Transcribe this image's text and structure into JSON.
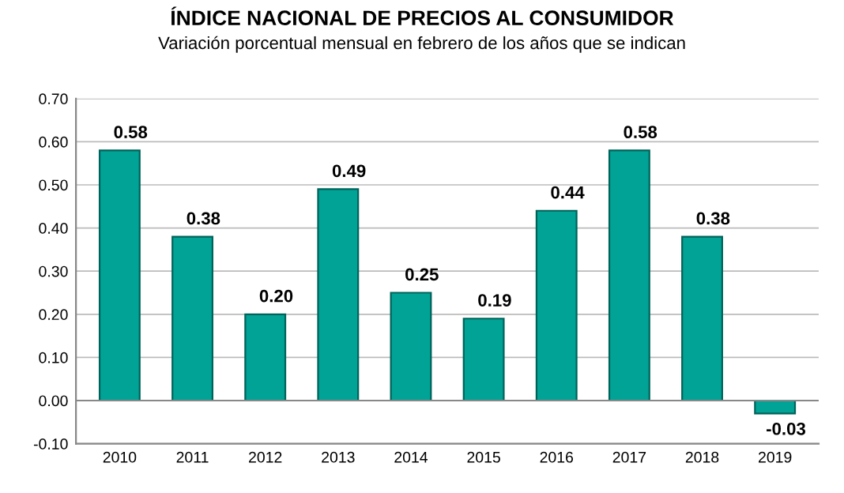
{
  "chart_data": {
    "type": "bar",
    "title": "ÍNDICE NACIONAL DE PRECIOS AL CONSUMIDOR",
    "subtitle": "Variación porcentual mensual en febrero de los años que se indican",
    "categories": [
      "2010",
      "2011",
      "2012",
      "2013",
      "2014",
      "2015",
      "2016",
      "2017",
      "2018",
      "2019"
    ],
    "values": [
      0.58,
      0.38,
      0.2,
      0.49,
      0.25,
      0.19,
      0.44,
      0.58,
      0.38,
      -0.03
    ],
    "value_labels": [
      "0.58",
      "0.38",
      "0.20",
      "0.49",
      "0.25",
      "0.19",
      "0.44",
      "0.58",
      "0.38",
      "-0.03"
    ],
    "color": "#00a396",
    "ylim": [
      -0.1,
      0.7
    ],
    "yticks": [
      {
        "value": -0.1,
        "label": "-0.10"
      },
      {
        "value": 0.0,
        "label": "0.00"
      },
      {
        "value": 0.1,
        "label": "0.10"
      },
      {
        "value": 0.2,
        "label": "0.20"
      },
      {
        "value": 0.3,
        "label": "0.30"
      },
      {
        "value": 0.4,
        "label": "0.40"
      },
      {
        "value": 0.5,
        "label": "0.50"
      },
      {
        "value": 0.6,
        "label": "0.60"
      },
      {
        "value": 0.7,
        "label": "0.70"
      }
    ],
    "grid": "y",
    "legend": false
  }
}
